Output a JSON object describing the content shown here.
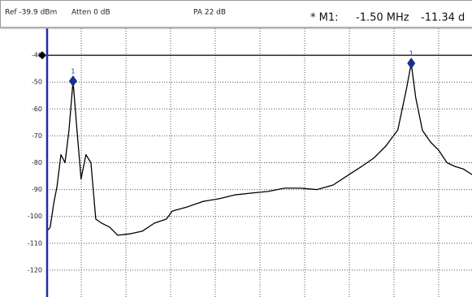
{
  "header": {
    "ref": "Ref -39.9 dBm",
    "atten": "Atten 0 dB",
    "pa": "PA 22 dB",
    "marker_name": "* M1:",
    "marker_freq": "-1.50 MHz",
    "marker_level": "-11.34 d"
  },
  "chart_data": {
    "type": "line",
    "x": [
      0,
      0.07,
      0.15,
      0.22,
      0.31,
      0.4,
      0.49,
      0.58,
      0.67,
      0.76,
      0.87,
      0.98,
      1.09,
      1.22,
      1.4,
      1.58,
      1.85,
      2.13,
      2.4,
      2.67,
      2.8,
      3.13,
      3.49,
      3.85,
      4.2,
      4.58,
      4.95,
      5.31,
      5.67,
      6.04,
      6.4,
      6.76,
      7.04,
      7.31,
      7.58,
      7.85,
      8.04,
      8.15,
      8.25,
      8.4,
      8.58,
      8.76,
      8.95,
      9.13,
      9.31,
      9.51
    ],
    "series": [
      {
        "color": "#000000",
        "values": [
          -105.5,
          -104,
          -95,
          -89,
          -77,
          -80,
          -68,
          -49.6,
          -68,
          -86,
          -77,
          -80,
          -101,
          -102.5,
          -104,
          -107,
          -106.5,
          -105.5,
          -102.5,
          -101,
          -98,
          -96.5,
          -94.4,
          -93.4,
          -92,
          -91.3,
          -90.7,
          -89.5,
          -89.5,
          -90,
          -88.3,
          -84.4,
          -81.4,
          -78.3,
          -73.8,
          -67.8,
          -52.7,
          -43,
          -55.7,
          -68,
          -72.3,
          -75.3,
          -80,
          -81.4,
          -82.3,
          -84.4
        ]
      }
    ],
    "xlim": [
      0,
      9.51
    ],
    "ylim": [
      -130,
      -30
    ],
    "yticks": [
      -40,
      -50,
      -60,
      -70,
      -80,
      -90,
      -100,
      -110,
      -120
    ],
    "grid": true,
    "reference_level": -40,
    "markers": [
      {
        "label": "1",
        "x": 0.58,
        "y": -49.6,
        "color": "#1a2f8f"
      },
      {
        "label": "1",
        "x": 8.15,
        "y": -43,
        "color": "#1a2f8f"
      }
    ]
  }
}
